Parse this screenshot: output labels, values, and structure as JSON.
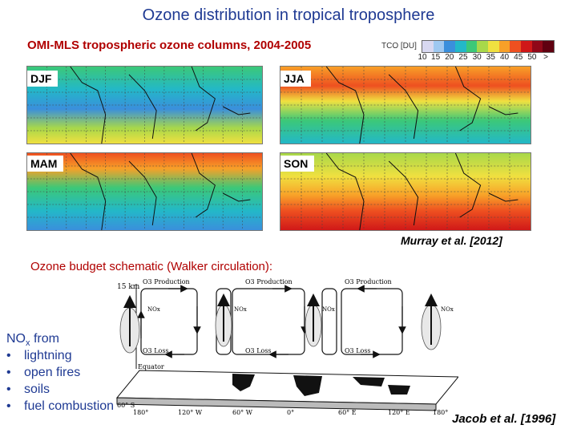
{
  "title": "Ozone distribution in tropical troposphere",
  "subtitle": "OMI-MLS tropospheric ozone columns, 2004-2005",
  "colorbar": {
    "label": "TCO [DU]",
    "ticks": [
      "10",
      "15",
      "20",
      "25",
      "30",
      "35",
      "40",
      "45",
      "50",
      ">"
    ],
    "colors": [
      "#d8d8f0",
      "#9ec8f0",
      "#3a8fdc",
      "#23b8c8",
      "#3cc878",
      "#a8d84a",
      "#f0e040",
      "#f8a028",
      "#ee5020",
      "#d01818",
      "#900818",
      "#600010"
    ]
  },
  "maps": [
    {
      "season": "DJF"
    },
    {
      "season": "JJA"
    },
    {
      "season": "MAM"
    },
    {
      "season": "SON"
    }
  ],
  "credit_top": "Murray et al. [2012]",
  "budget_title": "Ozone budget  schematic (Walker circulation):",
  "schematic": {
    "altitude_label": "15 km",
    "production_label": "O3 Production",
    "loss_label": "O3 Loss",
    "nox_label": "NOx",
    "equator_label": "Equator",
    "lat_label": "60° S",
    "longitudes": [
      "180°",
      "120° W",
      "60° W",
      "0°",
      "60° E",
      "120° E",
      "180°"
    ]
  },
  "nox_sources": {
    "title": "NO",
    "title_sub": "x",
    "title_tail": " from",
    "items": [
      "lightning",
      "open fires",
      "soils",
      "fuel combustion"
    ]
  },
  "credit_bottom": "Jacob et al. [1996]"
}
